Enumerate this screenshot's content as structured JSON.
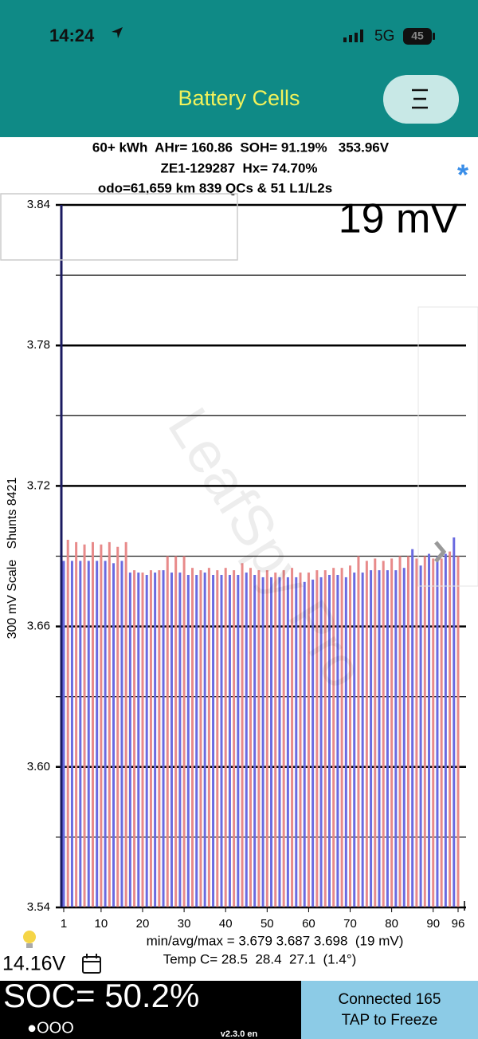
{
  "status_bar": {
    "time": "14:24",
    "network": "5G",
    "battery": "45"
  },
  "header": {
    "title": "Battery Cells"
  },
  "info": {
    "line1": "60+ kWh  AHr= 160.86  SOH= 91.19%   353.96V",
    "line2": "ZE1-129287  Hx= 74.70%",
    "line3": "odo=61,659 km 839 QCs & 51 L1/L2s",
    "marker": "*"
  },
  "chart_data": {
    "type": "bar",
    "y_label": "300 mV Scale   Shunts 8421",
    "spread_label": "19 mV",
    "watermark": "LeafSpy Pro",
    "categories": [
      1,
      2,
      3,
      4,
      5,
      6,
      7,
      8,
      9,
      10,
      11,
      12,
      13,
      14,
      15,
      16,
      17,
      18,
      19,
      20,
      21,
      22,
      23,
      24,
      25,
      26,
      27,
      28,
      29,
      30,
      31,
      32,
      33,
      34,
      35,
      36,
      37,
      38,
      39,
      40,
      41,
      42,
      43,
      44,
      45,
      46,
      47,
      48,
      49,
      50,
      51,
      52,
      53,
      54,
      55,
      56,
      57,
      58,
      59,
      60,
      61,
      62,
      63,
      64,
      65,
      66,
      67,
      68,
      69,
      70,
      71,
      72,
      73,
      74,
      75,
      76,
      77,
      78,
      79,
      80,
      81,
      82,
      83,
      84,
      85,
      86,
      87,
      88,
      89,
      90,
      91,
      92,
      93,
      94,
      95,
      96
    ],
    "values": [
      3.688,
      3.697,
      3.688,
      3.696,
      3.688,
      3.695,
      3.688,
      3.696,
      3.688,
      3.695,
      3.688,
      3.696,
      3.687,
      3.694,
      3.688,
      3.696,
      3.683,
      3.684,
      3.683,
      3.683,
      3.682,
      3.684,
      3.683,
      3.684,
      3.684,
      3.69,
      3.683,
      3.69,
      3.683,
      3.69,
      3.682,
      3.685,
      3.682,
      3.684,
      3.683,
      3.685,
      3.682,
      3.684,
      3.682,
      3.685,
      3.682,
      3.684,
      3.682,
      3.687,
      3.683,
      3.685,
      3.682,
      3.684,
      3.681,
      3.684,
      3.681,
      3.683,
      3.681,
      3.684,
      3.681,
      3.685,
      3.681,
      3.683,
      3.679,
      3.683,
      3.68,
      3.684,
      3.681,
      3.684,
      3.682,
      3.685,
      3.682,
      3.685,
      3.681,
      3.686,
      3.683,
      3.69,
      3.683,
      3.688,
      3.684,
      3.689,
      3.684,
      3.688,
      3.684,
      3.689,
      3.684,
      3.69,
      3.685,
      3.69,
      3.693,
      3.689,
      3.686,
      3.69,
      3.691,
      3.689,
      3.69,
      3.689,
      3.691,
      3.692,
      3.698,
      3.69
    ],
    "bar_colors": [
      "#6a6ae0",
      "#e88a8a"
    ],
    "ylim": [
      3.54,
      3.84
    ],
    "yticks": [
      3.54,
      {
        "value": 3.6,
        "label": "3.60"
      },
      3.66,
      3.72,
      3.78,
      3.84
    ],
    "minor_yticks": [
      3.57,
      3.63,
      3.69,
      3.75,
      3.81
    ],
    "xticks": [
      1,
      10,
      20,
      30,
      40,
      50,
      60,
      70,
      80,
      90,
      96
    ],
    "grid": true
  },
  "stats": {
    "minmax": "min/avg/max = 3.679 3.687 3.698  (19 mV)",
    "temp": "Temp C= 28.5  28.4  27.1  (1.4°)"
  },
  "footer": {
    "voltage": "14.16V",
    "soc": "SOC= 50.2%",
    "dots": "●OOO",
    "version": "v2.3.0 en",
    "connected": "Connected 165",
    "tap": "TAP to Freeze"
  }
}
